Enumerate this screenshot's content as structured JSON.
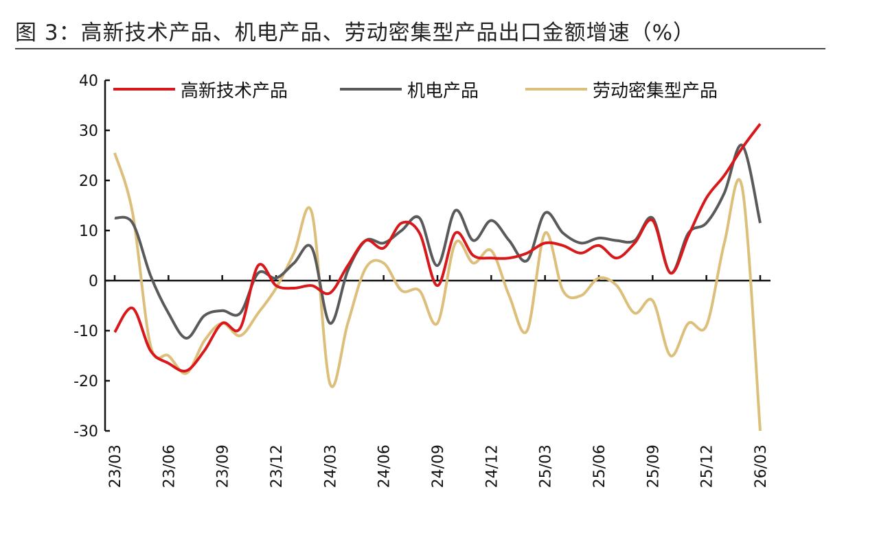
{
  "chart_data": {
    "type": "line",
    "title": "图 3：高新技术产品、机电产品、劳动密集型产品出口金额增速（%）",
    "xlabel": "",
    "ylabel": "",
    "ylim": [
      -30,
      40
    ],
    "yticks": [
      40,
      30,
      20,
      10,
      0,
      -10,
      -20,
      -30
    ],
    "xtick_labels": [
      "23/03",
      "23/06",
      "23/09",
      "23/12",
      "24/03",
      "24/06",
      "24/09",
      "24/12",
      "25/03",
      "25/06",
      "25/09",
      "25/12",
      "26/03"
    ],
    "x": [
      "23/03",
      "23/04",
      "23/05",
      "23/06",
      "23/07",
      "23/08",
      "23/09",
      "23/10",
      "23/11",
      "23/12",
      "24/01",
      "24/02",
      "24/03",
      "24/04",
      "24/05",
      "24/06",
      "24/07",
      "24/08",
      "24/09",
      "24/10",
      "24/11",
      "24/12",
      "25/01",
      "25/02",
      "25/03",
      "25/04",
      "25/05",
      "25/06",
      "25/07",
      "25/08",
      "25/09",
      "25/10",
      "25/11",
      "25/12",
      "26/01",
      "26/02",
      "26/03"
    ],
    "grid": false,
    "legend_placement": "top",
    "series": [
      {
        "name": "高新技术产品",
        "color": "#d7191c",
        "values": [
          -10.3,
          -5.5,
          -14,
          -16.5,
          -18,
          -14,
          -8.5,
          -9.5,
          3,
          -1,
          -1.5,
          -1,
          -2.5,
          3,
          8,
          6.5,
          11.5,
          9.5,
          -1,
          9.5,
          5,
          4.5,
          4.5,
          5.5,
          7.5,
          7,
          5.5,
          7,
          4.5,
          7.5,
          12,
          1.5,
          9,
          16.5,
          21,
          26.5,
          31.3
        ]
      },
      {
        "name": "机电产品",
        "color": "#5a5a5a",
        "values": [
          12.5,
          11.5,
          1,
          -6.5,
          -11.5,
          -7,
          -6,
          -6.5,
          1.5,
          0.5,
          3.5,
          6.5,
          -8.5,
          2,
          8,
          7.5,
          10,
          12.5,
          3,
          14,
          8,
          12,
          8,
          4,
          13.5,
          9.5,
          7.5,
          8.5,
          8,
          8,
          12.5,
          1.5,
          9.5,
          11.5,
          17.5,
          27,
          11.5
        ]
      },
      {
        "name": "劳动密集型产品",
        "color": "#dcbf7a",
        "values": [
          25.5,
          13.5,
          -13,
          -15,
          -18.5,
          -12,
          -8.5,
          -11,
          -6.5,
          -1.5,
          5.5,
          13.5,
          -20.5,
          -8.5,
          2.5,
          3.5,
          -2,
          -2,
          -8.5,
          7.5,
          3.5,
          6,
          -3,
          -10,
          9.5,
          -2,
          -3,
          0.5,
          -1,
          -6.5,
          -4,
          -15,
          -8.5,
          -9,
          7.5,
          18.5,
          -30
        ]
      }
    ]
  }
}
